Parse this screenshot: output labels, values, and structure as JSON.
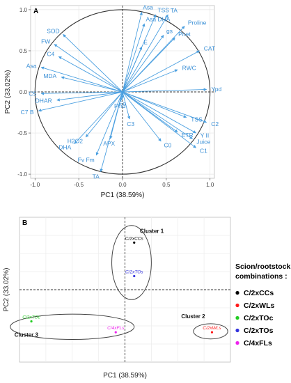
{
  "chart_data": [
    {
      "type": "biplot",
      "panel_label": "A",
      "xlabel": "PC1 (38.59%)",
      "ylabel": "PC2 (33.02%)",
      "xlim": [
        -1.05,
        1.05
      ],
      "ylim": [
        -1.05,
        1.05
      ],
      "x_ticks": [
        -1.0,
        -0.5,
        0.0,
        0.5,
        1.0
      ],
      "y_ticks": [
        -1.0,
        -0.5,
        0.0,
        0.5,
        1.0
      ],
      "x_tick_labels": [
        "-1.0",
        "-0.5",
        "0.0",
        "0.5",
        "1.0"
      ],
      "y_tick_labels": [
        "-1.0",
        "-0.5",
        "0.0",
        "0.5",
        "1.0"
      ],
      "grid": true,
      "arrow_color": "#4a9fe0",
      "vectors": [
        {
          "label": "Asa",
          "x": 0.22,
          "y": 0.97
        },
        {
          "label": "TSS",
          "x": 0.38,
          "y": 0.94
        },
        {
          "label": "TA",
          "x": 0.52,
          "y": 0.94
        },
        {
          "label": "Asa DHA",
          "x": 0.25,
          "y": 0.83
        },
        {
          "label": "Proline",
          "x": 0.71,
          "y": 0.8
        },
        {
          "label": "gs",
          "x": 0.47,
          "y": 0.69
        },
        {
          "label": "Pnet",
          "x": 0.6,
          "y": 0.66
        },
        {
          "label": "E",
          "x": 0.22,
          "y": 0.55
        },
        {
          "label": "CAT",
          "x": 0.88,
          "y": 0.5
        },
        {
          "label": "RWC",
          "x": 0.63,
          "y": 0.27
        },
        {
          "label": "Ypd",
          "x": 0.96,
          "y": 0.03
        },
        {
          "label": "SOD",
          "x": -0.68,
          "y": 0.7
        },
        {
          "label": "FW",
          "x": -0.78,
          "y": 0.58
        },
        {
          "label": "C4",
          "x": -0.73,
          "y": 0.43
        },
        {
          "label": "Asa",
          "x": -0.93,
          "y": 0.3
        },
        {
          "label": "MDA",
          "x": -0.7,
          "y": 0.18
        },
        {
          "label": "C5",
          "x": -0.93,
          "y": -0.02
        },
        {
          "label": "DHAR",
          "x": -0.75,
          "y": -0.1
        },
        {
          "label": "C7 B",
          "x": -0.96,
          "y": -0.23
        },
        {
          "label": "C2",
          "x": 0.96,
          "y": -0.37
        },
        {
          "label": "TSS",
          "x": 0.73,
          "y": -0.31
        },
        {
          "label": "Y II",
          "x": 0.84,
          "y": -0.5
        },
        {
          "label": "ETR",
          "x": 0.63,
          "y": -0.49
        },
        {
          "label": "Juice",
          "x": 0.8,
          "y": -0.57
        },
        {
          "label": "C1",
          "x": 0.84,
          "y": -0.68
        },
        {
          "label": "C3",
          "x": 0.08,
          "y": -0.33
        },
        {
          "label": "C0",
          "x": 0.44,
          "y": -0.6
        },
        {
          "label": "H2O2",
          "x": -0.42,
          "y": -0.55
        },
        {
          "label": "DHA",
          "x": -0.55,
          "y": -0.63
        },
        {
          "label": "APX",
          "x": -0.14,
          "y": -0.57
        },
        {
          "label": "Fv Fm",
          "x": -0.3,
          "y": -0.77
        },
        {
          "label": "TA",
          "x": -0.25,
          "y": -0.97
        },
        {
          "label": "Fo",
          "x": 0.0,
          "y": -0.08
        },
        {
          "label": "Find",
          "x": -0.02,
          "y": -0.11
        }
      ]
    },
    {
      "type": "scatter",
      "panel_label": "B",
      "xlabel": "PC1 (38.59%)",
      "ylabel": "PC2 (33.02%)",
      "xlim": [
        -4,
        4
      ],
      "ylim": [
        -4,
        4
      ],
      "grid": true,
      "legend_title": "Scion/rootstock combinations :",
      "legend_placement": "right",
      "series": [
        {
          "name": "C/2xCCs",
          "color": "#000000",
          "x": 0.35,
          "y": 2.6
        },
        {
          "name": "C/2xWLs",
          "color": "#ff1a1a",
          "x": 3.3,
          "y": -2.35
        },
        {
          "name": "C/2xTOc",
          "color": "#22cc22",
          "x": -3.55,
          "y": -1.75
        },
        {
          "name": "C/2xTOs",
          "color": "#3333dd",
          "x": 0.35,
          "y": 0.75
        },
        {
          "name": "C/4xFLs",
          "color": "#ee22ee",
          "x": -0.35,
          "y": -2.35
        }
      ],
      "clusters": [
        {
          "name": "Cluster 1",
          "cx": 0.25,
          "cy": 1.5,
          "rx": 0.75,
          "ry": 2.05
        },
        {
          "name": "Cluster 2",
          "cx": 3.25,
          "cy": -2.3,
          "rx": 0.65,
          "ry": 0.42
        },
        {
          "name": "Cluster 3",
          "cx": -2.0,
          "cy": -2.05,
          "rx": 2.35,
          "ry": 0.7
        }
      ]
    }
  ]
}
